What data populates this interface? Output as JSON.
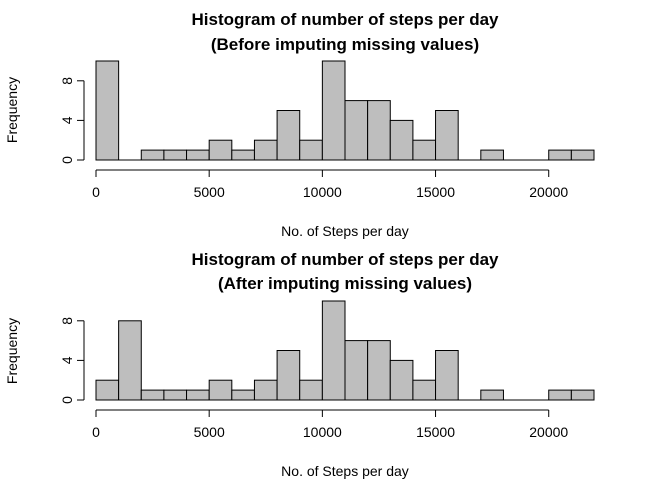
{
  "chart_data": [
    {
      "type": "bar",
      "title": "Histogram of number of steps per day",
      "subtitle": "(Before imputing missing values)",
      "xlabel": "No. of Steps per day",
      "ylabel": "Frequency",
      "bin_width": 1000,
      "bin_starts": [
        0,
        1000,
        2000,
        3000,
        4000,
        5000,
        6000,
        7000,
        8000,
        9000,
        10000,
        11000,
        12000,
        13000,
        14000,
        15000,
        16000,
        17000,
        18000,
        19000,
        20000,
        21000
      ],
      "values": [
        10,
        0,
        1,
        1,
        1,
        2,
        1,
        2,
        5,
        2,
        10,
        6,
        6,
        4,
        2,
        5,
        0,
        1,
        0,
        0,
        1,
        1
      ],
      "xlim": [
        0,
        22000
      ],
      "ylim": [
        0,
        10
      ],
      "x_ticks": [
        0,
        5000,
        10000,
        15000,
        20000
      ],
      "y_ticks": [
        0,
        4,
        8
      ],
      "bar_color": "#bebebe"
    },
    {
      "type": "bar",
      "title": "Histogram of number of steps per day",
      "subtitle": "(After imputing missing values)",
      "xlabel": "No. of Steps per day",
      "ylabel": "Frequency",
      "bin_width": 1000,
      "bin_starts": [
        0,
        1000,
        2000,
        3000,
        4000,
        5000,
        6000,
        7000,
        8000,
        9000,
        10000,
        11000,
        12000,
        13000,
        14000,
        15000,
        16000,
        17000,
        18000,
        19000,
        20000,
        21000
      ],
      "values": [
        2,
        8,
        1,
        1,
        1,
        2,
        1,
        2,
        5,
        2,
        10,
        6,
        6,
        4,
        2,
        5,
        0,
        1,
        0,
        0,
        1,
        1
      ],
      "xlim": [
        0,
        22000
      ],
      "ylim": [
        0,
        10
      ],
      "x_ticks": [
        0,
        5000,
        10000,
        15000,
        20000
      ],
      "y_ticks": [
        0,
        4,
        8
      ],
      "bar_color": "#bebebe"
    }
  ]
}
